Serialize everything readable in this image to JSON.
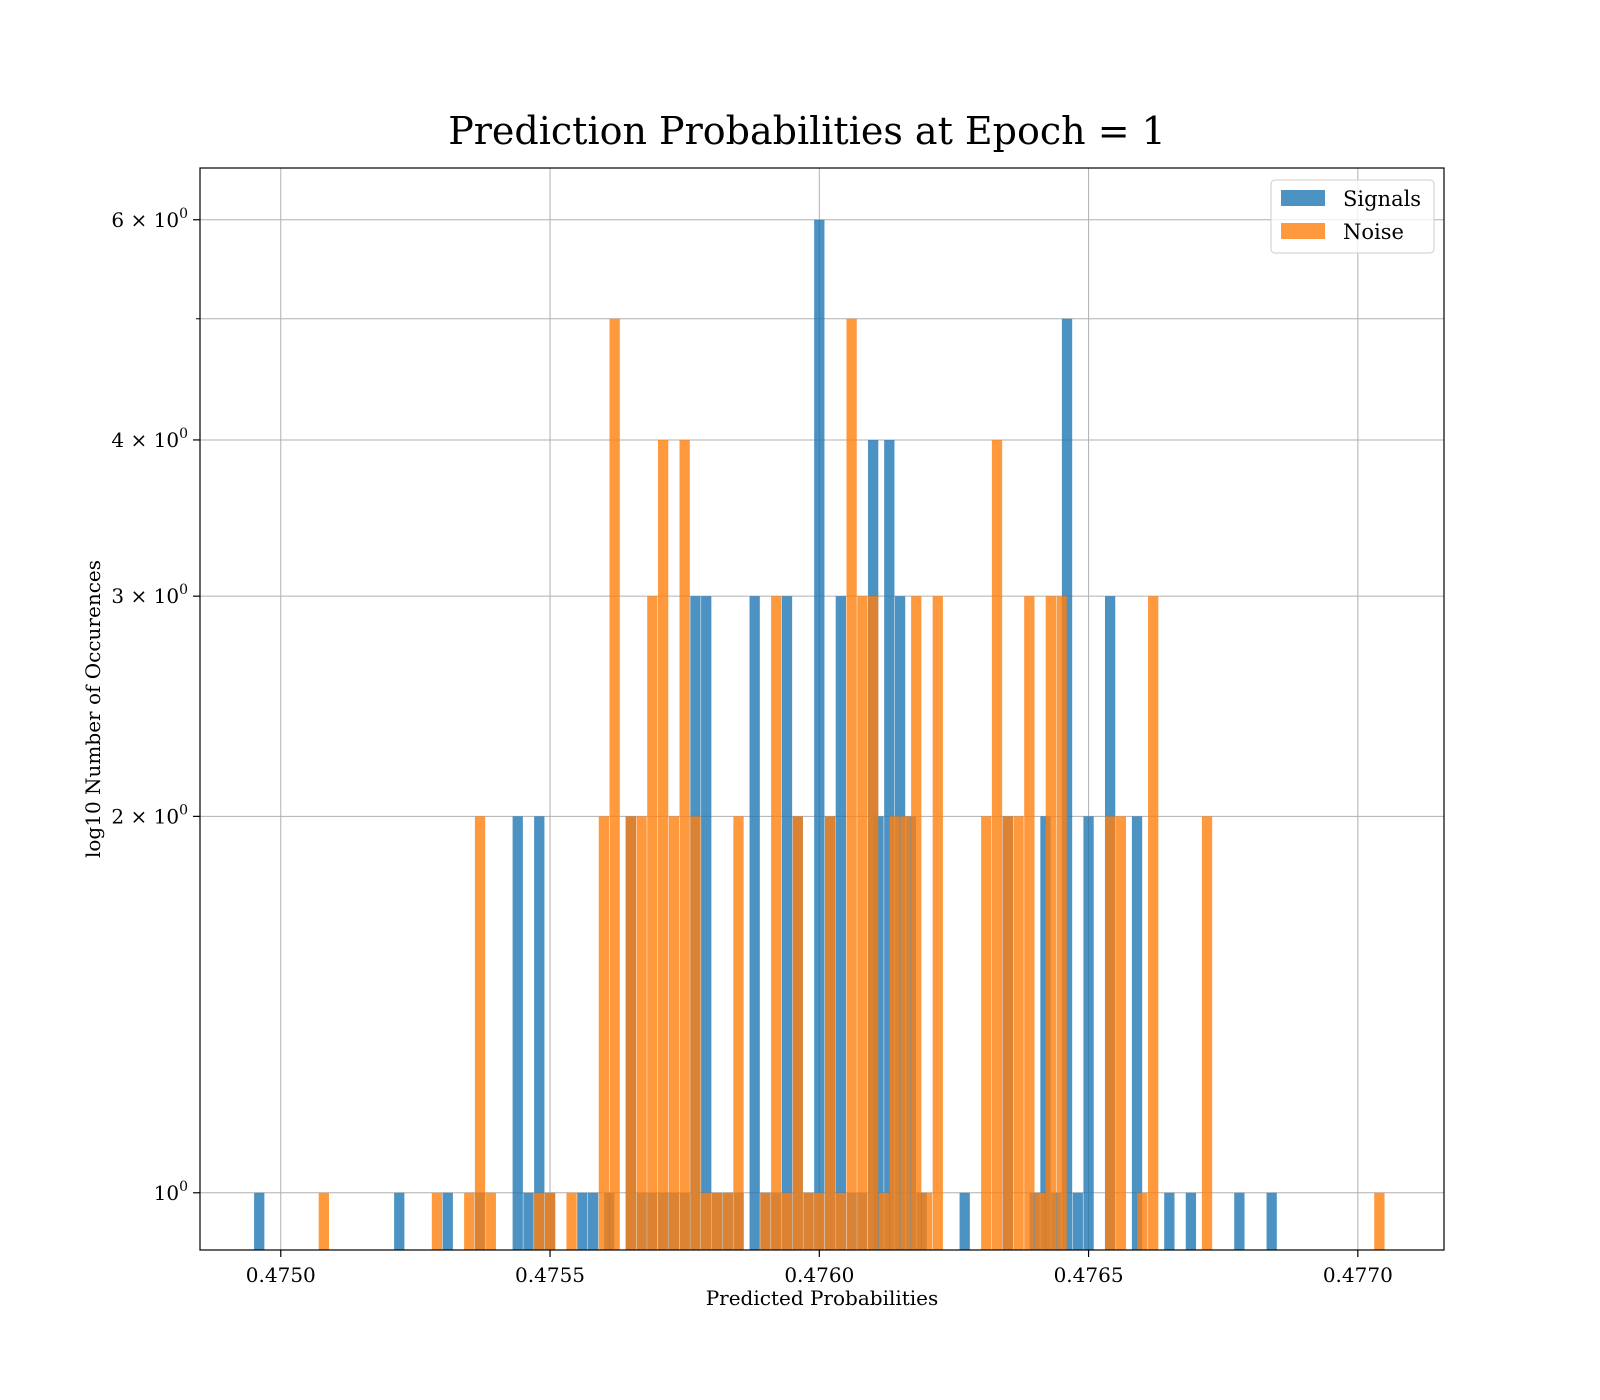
{
  "chart_data": {
    "type": "bar",
    "title": "Prediction Probabilities at Epoch = 1",
    "xlabel": "Predicted Probabilities",
    "ylabel": "log10 Number of Occurences",
    "xlim": [
      0.47485,
      0.47716
    ],
    "ylim": [
      0.9,
      6.6
    ],
    "yscale": "log",
    "grid": true,
    "legend_position": "top-right",
    "x_ticks": [
      {
        "value": 0.475,
        "label": "0.4750"
      },
      {
        "value": 0.4755,
        "label": "0.4755"
      },
      {
        "value": 0.476,
        "label": "0.4760"
      },
      {
        "value": 0.4765,
        "label": "0.4765"
      },
      {
        "value": 0.477,
        "label": "0.4770"
      }
    ],
    "y_ticks": [
      {
        "value": 1,
        "base": "10",
        "exp": "0"
      },
      {
        "value": 2,
        "base": "2 × 10",
        "exp": "0"
      },
      {
        "value": 3,
        "base": "3 × 10",
        "exp": "0"
      },
      {
        "value": 4,
        "base": "4 × 10",
        "exp": "0"
      },
      {
        "value": 6,
        "base": "6 × 10",
        "exp": "0"
      }
    ],
    "y_minor_ticks": [
      5
    ],
    "bin_width": 1.91e-05,
    "series": [
      {
        "name": "Signals",
        "color": "#1f77b4",
        "opacity": 0.8,
        "bins": [
          [
            0.47496,
            1
          ],
          [
            0.47522,
            1
          ],
          [
            0.47531,
            1
          ],
          [
            0.47537,
            1
          ],
          [
            0.47544,
            2
          ],
          [
            0.47546,
            1
          ],
          [
            0.47548,
            2
          ],
          [
            0.4755,
            1
          ],
          [
            0.47556,
            1
          ],
          [
            0.47558,
            1
          ],
          [
            0.47561,
            1
          ],
          [
            0.47565,
            2
          ],
          [
            0.47567,
            1
          ],
          [
            0.47569,
            1
          ],
          [
            0.47571,
            1
          ],
          [
            0.47573,
            1
          ],
          [
            0.47575,
            1
          ],
          [
            0.47577,
            3
          ],
          [
            0.47579,
            3
          ],
          [
            0.47581,
            1
          ],
          [
            0.47583,
            1
          ],
          [
            0.47585,
            1
          ],
          [
            0.47588,
            3
          ],
          [
            0.4759,
            1
          ],
          [
            0.47592,
            1
          ],
          [
            0.47594,
            3
          ],
          [
            0.47596,
            2
          ],
          [
            0.47598,
            1
          ],
          [
            0.476,
            6
          ],
          [
            0.47602,
            2
          ],
          [
            0.47604,
            3
          ],
          [
            0.47606,
            1
          ],
          [
            0.47608,
            1
          ],
          [
            0.4761,
            4
          ],
          [
            0.47611,
            2
          ],
          [
            0.47613,
            4
          ],
          [
            0.47615,
            3
          ],
          [
            0.47617,
            2
          ],
          [
            0.47619,
            1
          ],
          [
            0.47627,
            1
          ],
          [
            0.47635,
            2
          ],
          [
            0.4764,
            1
          ],
          [
            0.47642,
            2
          ],
          [
            0.47644,
            1
          ],
          [
            0.47646,
            5
          ],
          [
            0.47648,
            1
          ],
          [
            0.4765,
            2
          ],
          [
            0.47654,
            3
          ],
          [
            0.47659,
            2
          ],
          [
            0.47665,
            1
          ],
          [
            0.47669,
            1
          ],
          [
            0.47678,
            1
          ],
          [
            0.47684,
            1
          ]
        ]
      },
      {
        "name": "Noise",
        "color": "#ff7f0e",
        "opacity": 0.8,
        "bins": [
          [
            0.47508,
            1
          ],
          [
            0.47529,
            1
          ],
          [
            0.47535,
            1
          ],
          [
            0.47537,
            2
          ],
          [
            0.47539,
            1
          ],
          [
            0.47548,
            1
          ],
          [
            0.4755,
            1
          ],
          [
            0.47554,
            1
          ],
          [
            0.4756,
            2
          ],
          [
            0.47562,
            5
          ],
          [
            0.47565,
            2
          ],
          [
            0.47567,
            2
          ],
          [
            0.47569,
            3
          ],
          [
            0.47571,
            4
          ],
          [
            0.47573,
            2
          ],
          [
            0.47575,
            4
          ],
          [
            0.47577,
            2
          ],
          [
            0.47579,
            1
          ],
          [
            0.47581,
            1
          ],
          [
            0.47583,
            1
          ],
          [
            0.47585,
            2
          ],
          [
            0.4759,
            1
          ],
          [
            0.47592,
            3
          ],
          [
            0.47594,
            1
          ],
          [
            0.47596,
            2
          ],
          [
            0.47598,
            1
          ],
          [
            0.476,
            1
          ],
          [
            0.47602,
            2
          ],
          [
            0.47604,
            1
          ],
          [
            0.47606,
            5
          ],
          [
            0.47608,
            3
          ],
          [
            0.4761,
            3
          ],
          [
            0.47612,
            1
          ],
          [
            0.47614,
            2
          ],
          [
            0.47616,
            2
          ],
          [
            0.47618,
            3
          ],
          [
            0.4762,
            1
          ],
          [
            0.47622,
            3
          ],
          [
            0.47631,
            2
          ],
          [
            0.47633,
            4
          ],
          [
            0.47635,
            2
          ],
          [
            0.47637,
            2
          ],
          [
            0.47639,
            3
          ],
          [
            0.47641,
            1
          ],
          [
            0.47643,
            3
          ],
          [
            0.47645,
            3
          ],
          [
            0.47654,
            2
          ],
          [
            0.47656,
            2
          ],
          [
            0.4766,
            1
          ],
          [
            0.47662,
            3
          ],
          [
            0.47672,
            2
          ],
          [
            0.47704,
            1
          ]
        ]
      }
    ]
  }
}
